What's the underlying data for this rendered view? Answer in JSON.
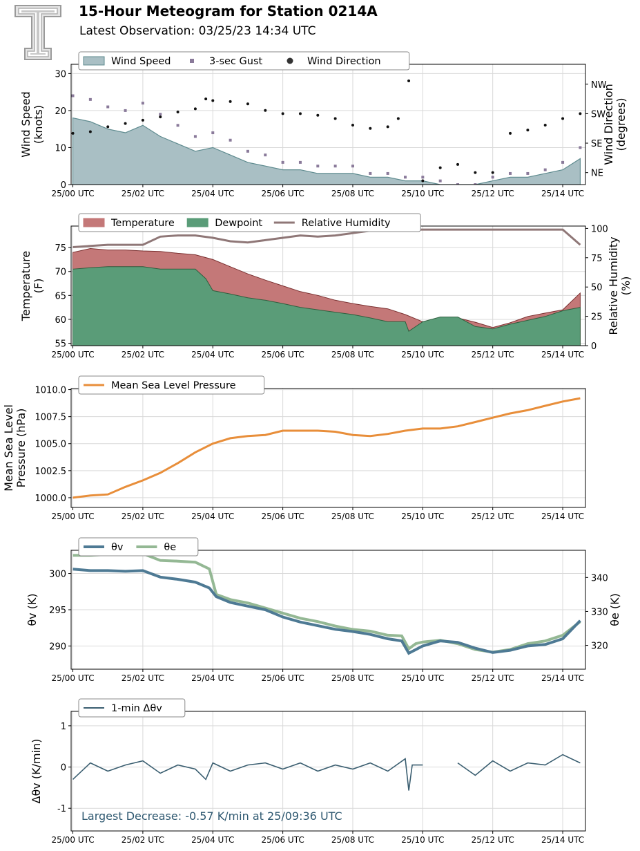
{
  "header": {
    "title": "15-Hour Meteogram for Station 0214A",
    "subtitle": "Latest Observation: 03/25/23 14:34 UTC",
    "logo_icon": "texas-tech-double-t-logo",
    "logo_letter": "T"
  },
  "x_tick_labels": [
    "25/00 UTC",
    "25/02 UTC",
    "25/04 UTC",
    "25/06 UTC",
    "25/08 UTC",
    "25/10 UTC",
    "25/12 UTC",
    "25/14 UTC"
  ],
  "chart_data": [
    {
      "type": "area",
      "x_range_hours": [
        -0.05,
        14.65
      ],
      "xlabel": "",
      "ylabel": "Wind Speed\n(knots)",
      "ylabel_right": "Wind Direction\n(degrees)",
      "ylim": [
        0,
        32.5
      ],
      "y_ticks": [
        0,
        10,
        20,
        30
      ],
      "y2_ticks": [
        "NW",
        "SW",
        "SE",
        "NE"
      ],
      "grid": true,
      "legend_placement": "top-left",
      "colors": {
        "wind_speed": "#a9bfc4",
        "wind_speed_edge": "#5d8a8e",
        "gust": "#8a7a9a",
        "direction": "#111111"
      },
      "series": [
        {
          "name": "Wind Speed",
          "x": [
            0,
            0.5,
            1,
            1.5,
            2,
            2.5,
            3,
            3.5,
            4,
            4.5,
            5,
            5.5,
            6,
            6.5,
            7,
            7.5,
            8,
            8.5,
            9,
            9.5,
            10,
            10.5,
            11,
            11.5,
            12,
            12.5,
            13,
            13.5,
            14,
            14.5
          ],
          "values": [
            18,
            17,
            15,
            14,
            16,
            13,
            11,
            9,
            10,
            8,
            6,
            5,
            4,
            4,
            3,
            3,
            3,
            2,
            2,
            1,
            1,
            0,
            0,
            0,
            1,
            2,
            2,
            3,
            4,
            7
          ]
        },
        {
          "name": "3-sec Gust",
          "x": [
            0,
            0.5,
            1,
            1.5,
            2,
            2.5,
            3,
            3.5,
            4,
            4.5,
            5,
            5.5,
            6,
            6.5,
            7,
            7.5,
            8,
            8.5,
            9,
            9.5,
            10,
            10.5,
            11,
            11.5,
            12,
            12.5,
            13,
            13.5,
            14,
            14.5
          ],
          "values": [
            24,
            23,
            21,
            20,
            22,
            19,
            16,
            13,
            14,
            12,
            9,
            8,
            6,
            6,
            5,
            5,
            5,
            3,
            3,
            2,
            2,
            1,
            0,
            0,
            2,
            3,
            3,
            4,
            6,
            10
          ]
        },
        {
          "name": "Wind Direction",
          "x": [
            0,
            0.5,
            1,
            1.5,
            2,
            2.5,
            3,
            3.5,
            3.8,
            4,
            4.5,
            5,
            5.5,
            6,
            6.5,
            7,
            7.5,
            8,
            8.5,
            9,
            9.3,
            9.6,
            10,
            10.5,
            11,
            11.5,
            12,
            12.5,
            13,
            13.5,
            14,
            14.5
          ],
          "values": [
            165,
            170,
            185,
            195,
            205,
            215,
            230,
            240,
            270,
            265,
            262,
            255,
            235,
            225,
            225,
            220,
            210,
            190,
            180,
            185,
            210,
            325,
            20,
            60,
            70,
            45,
            45,
            165,
            175,
            190,
            210,
            225
          ]
        }
      ]
    },
    {
      "type": "area",
      "x_range_hours": [
        -0.05,
        14.65
      ],
      "ylabel": "Temperature\n(F)",
      "ylabel_right": "Relative Humidity\n(%)",
      "ylim": [
        54.5,
        79.5
      ],
      "y_ticks": [
        55,
        60,
        65,
        70,
        75
      ],
      "y2lim": [
        0,
        102
      ],
      "y2_ticks": [
        0,
        25,
        50,
        75,
        100
      ],
      "grid": true,
      "legend_placement": "top-left",
      "colors": {
        "temperature": "#c47878",
        "dewpoint": "#5a9c78",
        "rh": "#8f7777"
      },
      "series": [
        {
          "name": "Temperature",
          "x": [
            0,
            0.5,
            1,
            1.5,
            2,
            2.5,
            3,
            3.5,
            4,
            4.5,
            5,
            5.5,
            6,
            6.5,
            7,
            7.5,
            8,
            8.5,
            9,
            9.5,
            10,
            10.5,
            11,
            11.5,
            12,
            12.5,
            13,
            13.5,
            14,
            14.5
          ],
          "values": [
            74,
            74.8,
            74.5,
            74.5,
            74.3,
            74.2,
            73.8,
            73.5,
            72.5,
            71,
            69.5,
            68.2,
            67,
            65.8,
            65,
            64,
            63.3,
            62.7,
            62.2,
            61,
            59.5,
            60.2,
            60.3,
            59.4,
            58.3,
            59.3,
            60.6,
            61.3,
            62,
            65.5
          ]
        },
        {
          "name": "Dewpoint",
          "x": [
            0,
            0.5,
            1,
            1.5,
            2,
            2.5,
            3,
            3.5,
            3.8,
            4,
            4.5,
            5,
            5.5,
            6,
            6.5,
            7,
            7.5,
            8,
            8.5,
            9,
            9.5,
            9.6,
            10,
            10.5,
            11,
            11.5,
            12,
            12.5,
            13,
            13.5,
            14,
            14.5
          ],
          "values": [
            70.5,
            70.8,
            71,
            71,
            71,
            70.5,
            70.5,
            70.5,
            68.5,
            66,
            65.3,
            64.5,
            64,
            63.3,
            62.5,
            62,
            61.5,
            61,
            60.3,
            59.5,
            59.5,
            57.5,
            59.5,
            60.5,
            60.5,
            58.5,
            58,
            59,
            59.8,
            60.6,
            61.8,
            62.5
          ]
        },
        {
          "name": "Relative Humidity",
          "x": [
            0,
            0.5,
            1,
            1.5,
            2,
            2.5,
            3,
            3.5,
            4,
            4.5,
            5,
            5.5,
            6,
            6.5,
            7,
            7.5,
            8,
            8.5,
            9,
            9.5,
            10,
            10.5,
            11,
            11.5,
            12,
            12.5,
            13,
            13.5,
            14,
            14.5
          ],
          "values": [
            84,
            85,
            86,
            86,
            86,
            93,
            94,
            94,
            92,
            89,
            88,
            90,
            92,
            94,
            93,
            94,
            96,
            98,
            98,
            99,
            99,
            99,
            99,
            99,
            99,
            99,
            99,
            99,
            99,
            86
          ]
        }
      ]
    },
    {
      "type": "line",
      "x_range_hours": [
        -0.05,
        14.65
      ],
      "ylabel": "Mean Sea Level\nPressure (hPa)",
      "ylim": [
        999.1,
        1010.1
      ],
      "y_ticks": [
        1000.0,
        1002.5,
        1005.0,
        1007.5,
        1010.0
      ],
      "grid": true,
      "legend_placement": "top-left",
      "colors": {
        "pressure": "#e88e3a"
      },
      "series": [
        {
          "name": "Mean Sea Level Pressure",
          "x": [
            0,
            0.5,
            1,
            1.5,
            2,
            2.5,
            3,
            3.5,
            4,
            4.5,
            5,
            5.5,
            6,
            6.5,
            7,
            7.5,
            8,
            8.5,
            9,
            9.5,
            10,
            10.5,
            11,
            11.5,
            12,
            12.5,
            13,
            13.5,
            14,
            14.5
          ],
          "values": [
            1000,
            1000.2,
            1000.3,
            1001,
            1001.6,
            1002.3,
            1003.2,
            1004.2,
            1005,
            1005.5,
            1005.7,
            1005.8,
            1006.2,
            1006.2,
            1006.2,
            1006.1,
            1005.8,
            1005.7,
            1005.9,
            1006.2,
            1006.4,
            1006.4,
            1006.6,
            1007,
            1007.4,
            1007.8,
            1008.1,
            1008.5,
            1008.9,
            1009.2
          ]
        }
      ]
    },
    {
      "type": "line",
      "x_range_hours": [
        -0.05,
        14.65
      ],
      "ylabel": "θv (K)",
      "ylabel_right": "θe (K)",
      "ylim": [
        286.8,
        303.2
      ],
      "y_ticks": [
        290,
        295,
        300
      ],
      "y2lim": [
        313,
        348
      ],
      "y2_ticks": [
        320,
        330,
        340
      ],
      "grid": true,
      "legend_placement": "top-left",
      "colors": {
        "theta_v": "#4e7a94",
        "theta_e": "#94b894"
      },
      "series": [
        {
          "name": "θv",
          "x": [
            0,
            0.5,
            1,
            1.5,
            2,
            2.5,
            3,
            3.5,
            3.9,
            4.1,
            4.5,
            5,
            5.5,
            6,
            6.5,
            7,
            7.5,
            8,
            8.5,
            9,
            9.4,
            9.6,
            9.8,
            10,
            10.5,
            11,
            11.5,
            12,
            12.5,
            13,
            13.5,
            14,
            14.5
          ],
          "values": [
            300.6,
            300.4,
            300.4,
            300.3,
            300.4,
            299.5,
            299.2,
            298.8,
            298,
            296.8,
            296,
            295.5,
            295,
            294,
            293.3,
            292.8,
            292.3,
            292,
            291.6,
            291,
            290.7,
            289,
            289.5,
            290,
            290.7,
            290.5,
            289.7,
            289.1,
            289.4,
            290,
            290.2,
            291,
            293.5
          ]
        },
        {
          "name": "θe",
          "x": [
            0,
            0.5,
            1,
            1.5,
            2,
            2.5,
            3,
            3.5,
            3.9,
            4.1,
            4.5,
            5,
            5.5,
            6,
            6.5,
            7,
            7.5,
            8,
            8.5,
            9,
            9.4,
            9.6,
            9.8,
            10,
            10.5,
            11,
            11.5,
            12,
            12.5,
            13,
            13.5,
            14,
            14.5
          ],
          "values": [
            346.5,
            346.5,
            346.8,
            346.8,
            347,
            345,
            344.8,
            344.5,
            342.5,
            335,
            333.5,
            332.5,
            331,
            329.5,
            328,
            327,
            325.7,
            324.7,
            324.2,
            323,
            322.8,
            319,
            320.5,
            321,
            321.5,
            320.5,
            318.8,
            318,
            318.8,
            320.5,
            321.3,
            323,
            327
          ]
        }
      ]
    },
    {
      "type": "line",
      "x_range_hours": [
        -0.05,
        14.65
      ],
      "ylabel": "Δθv (K/min)",
      "ylim": [
        -1.55,
        1.35
      ],
      "y_ticks": [
        -1,
        0,
        1
      ],
      "grid": true,
      "legend_placement": "top-left",
      "colors": {
        "delta": "#3a5e70",
        "annotation": "#2e5870"
      },
      "series": [
        {
          "name": "1-min Δθv",
          "x": [
            0,
            0.5,
            1,
            1.5,
            2,
            2.5,
            3,
            3.5,
            3.8,
            4,
            4.5,
            5,
            5.5,
            6,
            6.5,
            7,
            7.5,
            8,
            8.5,
            9,
            9.5,
            9.6,
            9.7,
            10,
            10.5,
            11,
            11.5,
            12,
            12.5,
            13,
            13.5,
            14,
            14.5
          ],
          "values": [
            -0.3,
            0.1,
            -0.1,
            0.05,
            0.15,
            -0.15,
            0.05,
            -0.05,
            -0.3,
            0.1,
            -0.1,
            0.05,
            0.1,
            -0.05,
            0.1,
            -0.1,
            0.05,
            -0.05,
            0.1,
            -0.1,
            0.2,
            -0.57,
            0.05,
            0.05,
            null,
            0.1,
            -0.2,
            0.15,
            -0.1,
            0.1,
            0.05,
            0.3,
            0.1
          ]
        }
      ],
      "annotation": "Largest Decrease: -0.57 K/min at 25/09:36 UTC"
    }
  ]
}
